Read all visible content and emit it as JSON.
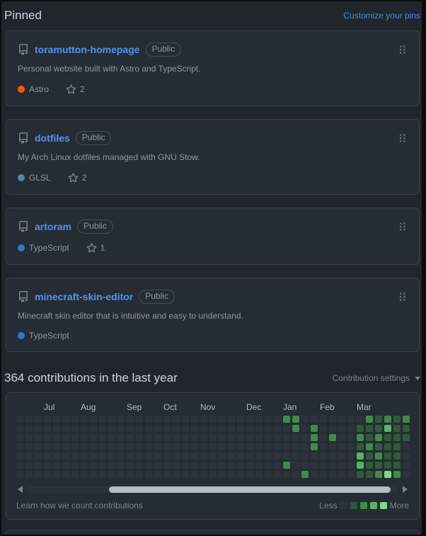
{
  "theme": {
    "page_bg": "#21262d",
    "card_bg": "#262c34",
    "border": "#3a414b",
    "text_primary": "#ccd6e0",
    "text_muted": "#8b98a5",
    "link_blue": "#478be6",
    "repo_link_blue": "#4f95f2"
  },
  "pinned": {
    "title": "Pinned",
    "customize_link": "Customize your pins",
    "public_badge": "Public",
    "repos": [
      {
        "name": "toramutton-homepage",
        "description": "Personal website built with Astro and TypeScript.",
        "language": "Astro",
        "language_color": "#ff5a03",
        "stars": "2"
      },
      {
        "name": "dotfiles",
        "description": "My Arch Linux dotfiles managed with GNU Stow.",
        "language": "GLSL",
        "language_color": "#5686a5",
        "stars": "2"
      },
      {
        "name": "artoram",
        "description": "",
        "language": "TypeScript",
        "language_color": "#3178c6",
        "stars": "1"
      },
      {
        "name": "minecraft-skin-editor",
        "description": "Minecraft skin editor that is intuitive and easy to understand.",
        "language": "TypeScript",
        "language_color": "#3178c6",
        "stars": ""
      }
    ]
  },
  "contributions": {
    "title": "364 contributions in the last year",
    "settings_label": "Contribution settings",
    "learn_link": "Learn how we count contributions",
    "legend_less": "Less",
    "legend_more": "More"
  },
  "chart_data": {
    "type": "heatmap",
    "title": "364 contributions in the last year",
    "rows": 7,
    "weeks": 43,
    "legend_position": "bottom-right",
    "level_colors": [
      "#2d333b",
      "#2e5a38",
      "#3f8b4b",
      "#57b364",
      "#80d68f"
    ],
    "month_labels": [
      {
        "label": "Jul",
        "col": 3
      },
      {
        "label": "Aug",
        "col": 7
      },
      {
        "label": "Sep",
        "col": 12
      },
      {
        "label": "Oct",
        "col": 16
      },
      {
        "label": "Nov",
        "col": 20
      },
      {
        "label": "Dec",
        "col": 25
      },
      {
        "label": "Jan",
        "col": 29
      },
      {
        "label": "Feb",
        "col": 33
      },
      {
        "label": "Mar",
        "col": 37
      }
    ],
    "nonzero_cells": [
      [
        0,
        29,
        2
      ],
      [
        0,
        30,
        2
      ],
      [
        1,
        30,
        2
      ],
      [
        1,
        32,
        2
      ],
      [
        2,
        32,
        2
      ],
      [
        2,
        34,
        2
      ],
      [
        3,
        32,
        2
      ],
      [
        5,
        29,
        2
      ],
      [
        6,
        31,
        2
      ],
      [
        1,
        37,
        1
      ],
      [
        2,
        37,
        2
      ],
      [
        3,
        37,
        1
      ],
      [
        4,
        37,
        3
      ],
      [
        5,
        37,
        3
      ],
      [
        6,
        37,
        1
      ],
      [
        0,
        38,
        2
      ],
      [
        1,
        38,
        1
      ],
      [
        2,
        38,
        1
      ],
      [
        3,
        38,
        2
      ],
      [
        4,
        38,
        1
      ],
      [
        5,
        38,
        1
      ],
      [
        6,
        38,
        1
      ],
      [
        0,
        39,
        1
      ],
      [
        1,
        39,
        1
      ],
      [
        2,
        39,
        2
      ],
      [
        3,
        39,
        1
      ],
      [
        4,
        39,
        2
      ],
      [
        5,
        39,
        1
      ],
      [
        6,
        39,
        2
      ],
      [
        0,
        40,
        2
      ],
      [
        1,
        40,
        3
      ],
      [
        2,
        40,
        1
      ],
      [
        3,
        40,
        1
      ],
      [
        4,
        40,
        1
      ],
      [
        5,
        40,
        1
      ],
      [
        6,
        40,
        4
      ],
      [
        0,
        41,
        1
      ],
      [
        1,
        41,
        1
      ],
      [
        2,
        41,
        1
      ],
      [
        3,
        41,
        1
      ],
      [
        4,
        41,
        1
      ],
      [
        5,
        41,
        1
      ],
      [
        6,
        41,
        2
      ],
      [
        0,
        42,
        2
      ],
      [
        1,
        42,
        1
      ],
      [
        2,
        42,
        1
      ]
    ]
  }
}
